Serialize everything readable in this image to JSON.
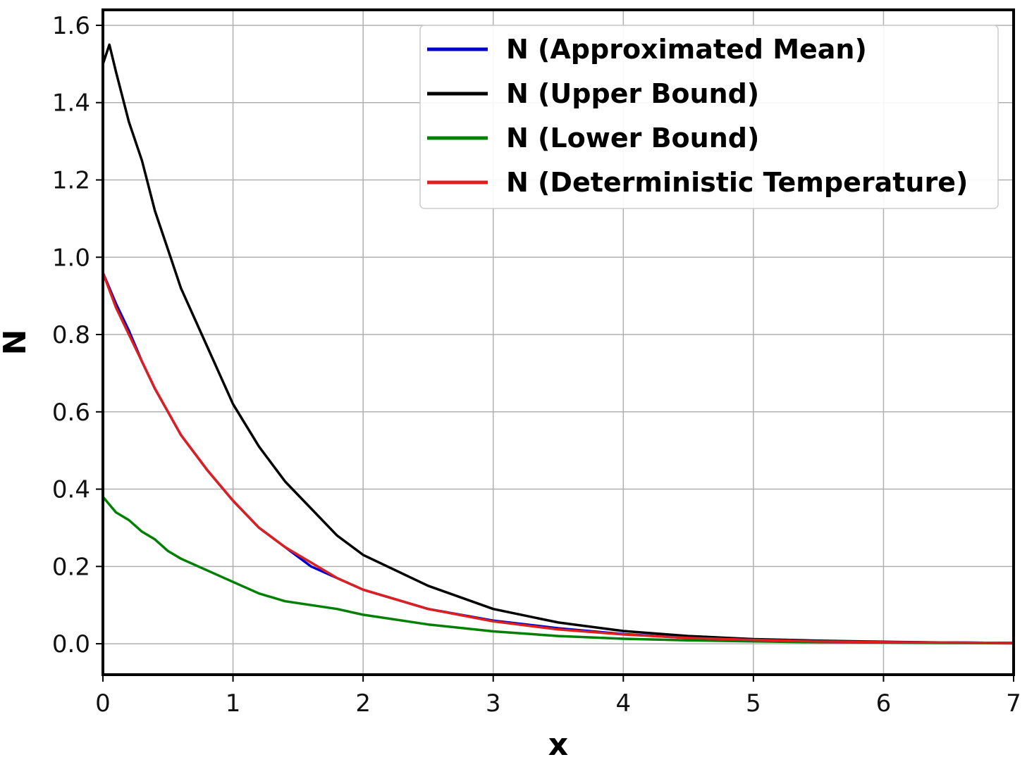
{
  "chart_data": {
    "type": "line",
    "title": "",
    "xlabel": "x",
    "ylabel": "N",
    "xlim": [
      0,
      7
    ],
    "ylim": [
      -0.08,
      1.64
    ],
    "xticks": [
      0,
      1,
      2,
      3,
      4,
      5,
      6,
      7
    ],
    "yticks": [
      0.0,
      0.2,
      0.4,
      0.6,
      0.8,
      1.0,
      1.2,
      1.4,
      1.6
    ],
    "ytick_labels": [
      "0.0",
      "0.2",
      "0.4",
      "0.6",
      "0.8",
      "1.0",
      "1.2",
      "1.4",
      "1.6"
    ],
    "grid": true,
    "legend_position": "top-right",
    "series": [
      {
        "name": "N (Approximated Mean)",
        "color": "#0000cc",
        "x": [
          0,
          0.1,
          0.2,
          0.3,
          0.4,
          0.5,
          0.6,
          0.8,
          1.0,
          1.2,
          1.4,
          1.6,
          1.8,
          2.0,
          2.5,
          3.0,
          3.5,
          4.0,
          4.5,
          5.0,
          5.5,
          6.0,
          6.5,
          7.0
        ],
        "y": [
          0.96,
          0.88,
          0.81,
          0.73,
          0.66,
          0.6,
          0.54,
          0.45,
          0.37,
          0.3,
          0.25,
          0.2,
          0.17,
          0.14,
          0.09,
          0.06,
          0.04,
          0.025,
          0.015,
          0.01,
          0.006,
          0.004,
          0.003,
          0.002
        ]
      },
      {
        "name": "N (Upper Bound)",
        "color": "#000000",
        "x": [
          0,
          0.05,
          0.1,
          0.2,
          0.3,
          0.4,
          0.5,
          0.6,
          0.8,
          1.0,
          1.2,
          1.4,
          1.6,
          1.8,
          2.0,
          2.5,
          3.0,
          3.5,
          4.0,
          4.5,
          5.0,
          5.5,
          6.0,
          6.5,
          7.0
        ],
        "y": [
          1.5,
          1.55,
          1.48,
          1.35,
          1.25,
          1.12,
          1.02,
          0.92,
          0.77,
          0.62,
          0.51,
          0.42,
          0.35,
          0.28,
          0.23,
          0.15,
          0.09,
          0.055,
          0.033,
          0.02,
          0.012,
          0.008,
          0.005,
          0.003,
          0.002
        ]
      },
      {
        "name": "N (Lower Bound)",
        "color": "#008000",
        "x": [
          0,
          0.1,
          0.2,
          0.3,
          0.4,
          0.5,
          0.6,
          0.8,
          1.0,
          1.2,
          1.4,
          1.6,
          1.8,
          2.0,
          2.5,
          3.0,
          3.5,
          4.0,
          4.5,
          5.0,
          5.5,
          6.0,
          6.5,
          7.0
        ],
        "y": [
          0.38,
          0.34,
          0.32,
          0.29,
          0.27,
          0.24,
          0.22,
          0.19,
          0.16,
          0.13,
          0.11,
          0.1,
          0.09,
          0.075,
          0.05,
          0.032,
          0.02,
          0.013,
          0.009,
          0.006,
          0.004,
          0.003,
          0.002,
          0.001
        ]
      },
      {
        "name": "N (Deterministic Temperature)",
        "color": "#dd1f1f",
        "x": [
          0,
          0.1,
          0.2,
          0.3,
          0.4,
          0.5,
          0.6,
          0.8,
          1.0,
          1.2,
          1.4,
          1.6,
          1.8,
          2.0,
          2.5,
          3.0,
          3.5,
          4.0,
          4.5,
          5.0,
          5.5,
          6.0,
          6.5,
          7.0
        ],
        "y": [
          0.96,
          0.87,
          0.8,
          0.73,
          0.66,
          0.6,
          0.54,
          0.45,
          0.37,
          0.3,
          0.25,
          0.21,
          0.17,
          0.14,
          0.09,
          0.058,
          0.037,
          0.024,
          0.015,
          0.01,
          0.006,
          0.004,
          0.003,
          0.002
        ]
      }
    ]
  }
}
